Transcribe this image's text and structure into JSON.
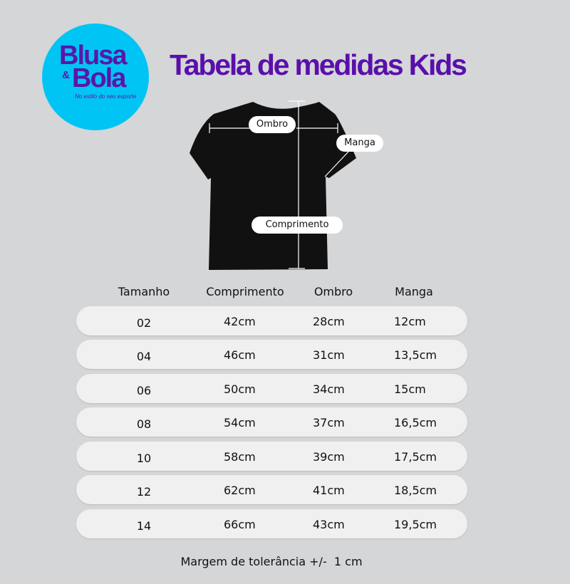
{
  "logo": {
    "line1": "Blusa",
    "amp": "&",
    "line2": "Bola",
    "tagline": "No estilo do seu esporte",
    "bg_color": "#00c4f4",
    "text_color": "#5a16a8"
  },
  "title": "Tabela de medidas Kids",
  "title_color": "#5a0faa",
  "diagram": {
    "ombro": "Ombro",
    "manga": "Manga",
    "comprimento": "Comprimento",
    "shirt_color": "#111111"
  },
  "table": {
    "headers": [
      "Tamanho",
      "Comprimento",
      "Ombro",
      "Manga"
    ],
    "rows": [
      [
        "02",
        "42cm",
        "28cm",
        "12cm"
      ],
      [
        "04",
        "46cm",
        "31cm",
        "13,5cm"
      ],
      [
        "06",
        "50cm",
        "34cm",
        "15cm"
      ],
      [
        "08",
        "54cm",
        "37cm",
        "16,5cm"
      ],
      [
        "10",
        "58cm",
        "39cm",
        "17,5cm"
      ],
      [
        "12",
        "62cm",
        "41cm",
        "18,5cm"
      ],
      [
        "14",
        "66cm",
        "43cm",
        "19,5cm"
      ]
    ]
  },
  "footer": "Margem de tolerância +/-  1 cm"
}
